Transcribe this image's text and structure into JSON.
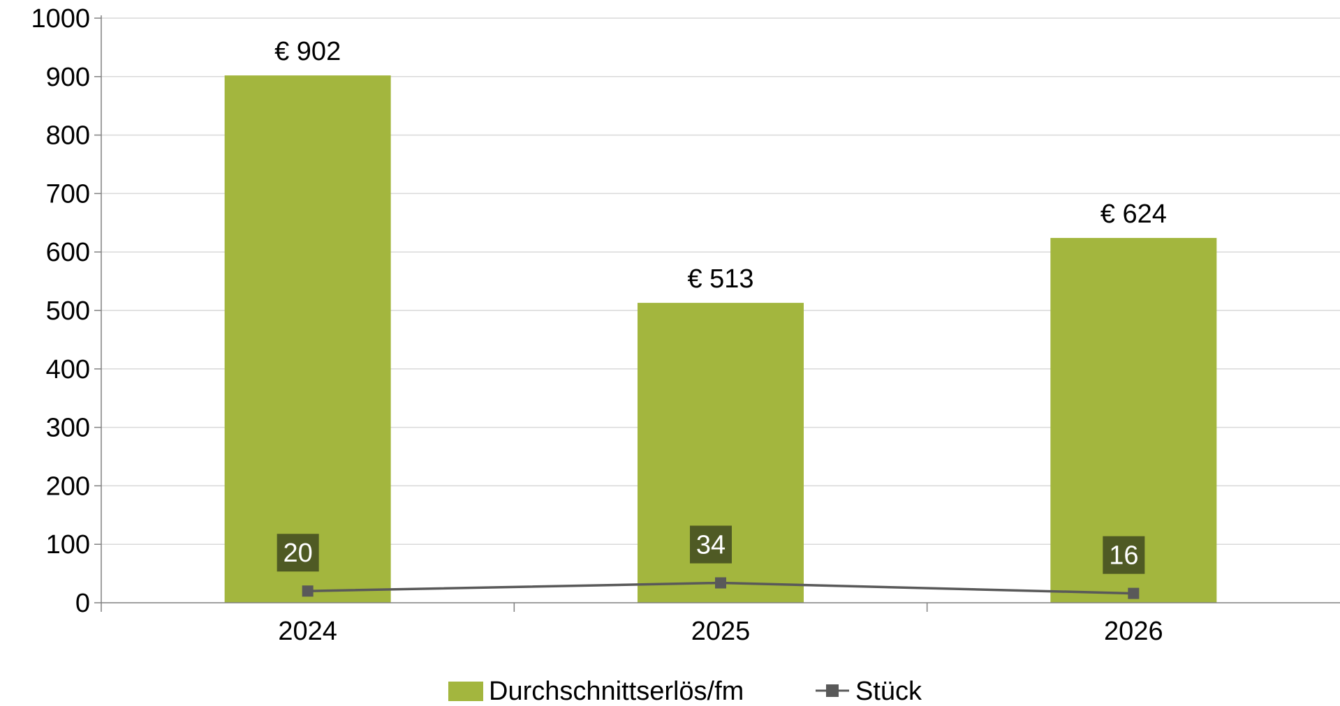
{
  "chart_data": {
    "type": "bar",
    "categories": [
      "2024",
      "2025",
      "2026"
    ],
    "ylim": [
      0,
      1000
    ],
    "yticks": [
      0,
      100,
      200,
      300,
      400,
      500,
      600,
      700,
      800,
      900,
      1000
    ],
    "grid": true,
    "legend_position": "bottom",
    "series": [
      {
        "name": "Durchschnittserlös/fm",
        "type": "bar",
        "values": [
          902,
          513,
          624
        ],
        "labels": [
          "€ 902",
          "€ 513",
          "€ 624"
        ],
        "color": "#A3B63E"
      },
      {
        "name": "Stück",
        "type": "line",
        "values": [
          20,
          34,
          16
        ],
        "labels": [
          "20",
          "34",
          "16"
        ],
        "color": "#595959",
        "label_background": "#4F5A24"
      }
    ]
  }
}
